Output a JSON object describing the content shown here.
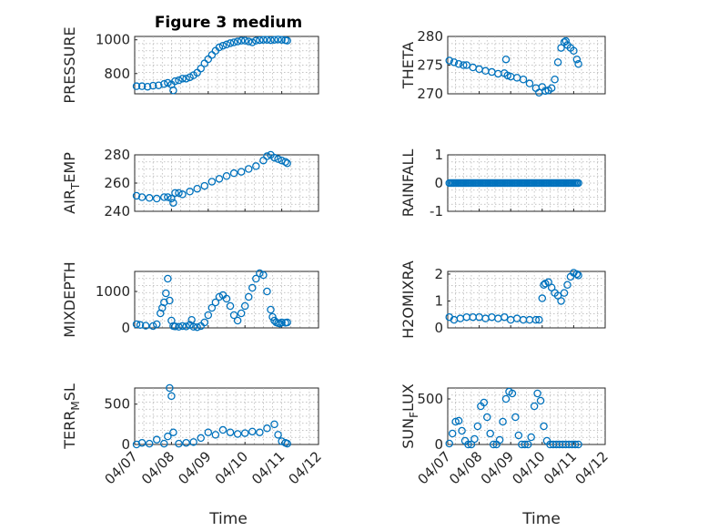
{
  "figure": {
    "title": "Figure 3 medium",
    "xlabel": "Time",
    "marker_color": "#0072BD"
  },
  "chart_data": [
    {
      "type": "scatter",
      "ylabel": "PRESSURE",
      "x_ticks": [
        "04/07",
        "04/08",
        "04/09",
        "04/10",
        "04/11",
        "04/12"
      ],
      "x_tick_labels_visible": false,
      "ylim": [
        680,
        1020
      ],
      "y_ticks": [
        800,
        1000
      ],
      "x_days": [
        0.05,
        0.2,
        0.35,
        0.5,
        0.65,
        0.8,
        0.9,
        1.0,
        1.05,
        1.1,
        1.2,
        1.3,
        1.4,
        1.5,
        1.6,
        1.7,
        1.8,
        1.9,
        2.0,
        2.1,
        2.2,
        2.3,
        2.4,
        2.5,
        2.6,
        2.7,
        2.8,
        2.9,
        3.0,
        3.1,
        3.2,
        3.3,
        3.4,
        3.5,
        3.6,
        3.7,
        3.8,
        3.9,
        4.0,
        4.1,
        4.15
      ],
      "y": [
        725,
        725,
        722,
        728,
        730,
        738,
        745,
        735,
        700,
        755,
        760,
        770,
        770,
        778,
        790,
        805,
        830,
        860,
        885,
        910,
        935,
        955,
        965,
        972,
        980,
        985,
        990,
        995,
        995,
        990,
        985,
        995,
        998,
        1000,
        1000,
        998,
        1000,
        1002,
        1000,
        998,
        995
      ]
    },
    {
      "type": "scatter",
      "ylabel": "THETA",
      "x_ticks": [
        "04/07",
        "04/08",
        "04/09",
        "04/10",
        "04/11",
        "04/12"
      ],
      "x_tick_labels_visible": false,
      "ylim": [
        270,
        280
      ],
      "y_ticks": [
        270,
        275,
        280
      ],
      "x_days": [
        0.05,
        0.2,
        0.35,
        0.5,
        0.6,
        0.8,
        1.0,
        1.2,
        1.4,
        1.6,
        1.8,
        1.85,
        1.9,
        2.0,
        2.2,
        2.4,
        2.6,
        2.8,
        2.9,
        3.0,
        3.1,
        3.2,
        3.3,
        3.4,
        3.5,
        3.6,
        3.7,
        3.75,
        3.8,
        3.9,
        4.0,
        4.1,
        4.15
      ],
      "y": [
        275.8,
        275.5,
        275.2,
        275.0,
        275.0,
        274.6,
        274.3,
        274.0,
        273.8,
        273.5,
        273.6,
        276.0,
        273.2,
        273.0,
        272.8,
        272.5,
        271.8,
        271.0,
        270.2,
        271.2,
        270.5,
        270.6,
        271.0,
        272.5,
        275.5,
        278.0,
        279.0,
        279.2,
        278.5,
        278.0,
        277.5,
        276.0,
        275.2
      ]
    },
    {
      "type": "scatter",
      "ylabel": "AIR_TEMP",
      "x_ticks": [
        "04/07",
        "04/08",
        "04/09",
        "04/10",
        "04/11",
        "04/12"
      ],
      "x_tick_labels_visible": false,
      "ylim": [
        240,
        280
      ],
      "y_ticks": [
        240,
        260,
        280
      ],
      "x_days": [
        0.05,
        0.2,
        0.4,
        0.6,
        0.8,
        0.9,
        1.0,
        1.05,
        1.1,
        1.2,
        1.3,
        1.5,
        1.7,
        1.9,
        2.1,
        2.3,
        2.5,
        2.7,
        2.9,
        3.1,
        3.3,
        3.5,
        3.6,
        3.7,
        3.8,
        3.9,
        4.0,
        4.1,
        4.15
      ],
      "y": [
        251,
        250,
        249.5,
        249,
        250,
        250,
        249,
        246,
        253,
        253,
        252,
        254,
        256,
        258,
        261,
        263,
        265,
        267,
        268,
        270,
        272,
        276,
        279,
        280,
        278,
        277,
        276,
        275,
        274
      ]
    },
    {
      "type": "scatter",
      "ylabel": "RAINFALL",
      "x_ticks": [
        "04/07",
        "04/08",
        "04/09",
        "04/10",
        "04/11",
        "04/12"
      ],
      "x_tick_labels_visible": false,
      "ylim": [
        -1,
        1
      ],
      "y_ticks": [
        -1,
        0,
        1
      ],
      "x_range_days": [
        0.05,
        4.15
      ],
      "constant_value": 0,
      "point_count": 90
    },
    {
      "type": "scatter",
      "ylabel": "MIXDEPTH",
      "x_ticks": [
        "04/07",
        "04/08",
        "04/09",
        "04/10",
        "04/11",
        "04/12"
      ],
      "x_tick_labels_visible": false,
      "ylim": [
        0,
        1550
      ],
      "y_ticks": [
        0,
        1000
      ],
      "x_days": [
        0.05,
        0.15,
        0.3,
        0.5,
        0.6,
        0.7,
        0.75,
        0.8,
        0.85,
        0.9,
        0.95,
        1.0,
        1.05,
        1.1,
        1.2,
        1.3,
        1.4,
        1.5,
        1.55,
        1.6,
        1.7,
        1.8,
        1.9,
        2.0,
        2.1,
        2.2,
        2.3,
        2.4,
        2.5,
        2.6,
        2.7,
        2.8,
        2.9,
        3.0,
        3.1,
        3.2,
        3.3,
        3.4,
        3.5,
        3.6,
        3.7,
        3.75,
        3.8,
        3.85,
        3.9,
        3.95,
        4.0,
        4.1,
        4.15
      ],
      "y": [
        100,
        80,
        60,
        50,
        100,
        400,
        550,
        700,
        950,
        1350,
        750,
        200,
        50,
        40,
        30,
        50,
        40,
        80,
        220,
        30,
        20,
        50,
        150,
        350,
        550,
        700,
        850,
        900,
        800,
        600,
        350,
        200,
        400,
        600,
        850,
        1100,
        1350,
        1500,
        1450,
        1000,
        500,
        300,
        200,
        150,
        130,
        120,
        150,
        140,
        150
      ]
    },
    {
      "type": "scatter",
      "ylabel": "H2OMIXRA",
      "x_ticks": [
        "04/07",
        "04/08",
        "04/09",
        "04/10",
        "04/11",
        "04/12"
      ],
      "x_tick_labels_visible": false,
      "ylim": [
        0,
        2.1
      ],
      "y_ticks": [
        0,
        1,
        2
      ],
      "x_days": [
        0.05,
        0.2,
        0.4,
        0.6,
        0.8,
        1.0,
        1.2,
        1.4,
        1.6,
        1.8,
        2.0,
        2.2,
        2.4,
        2.6,
        2.8,
        2.9,
        3.0,
        3.05,
        3.1,
        3.2,
        3.3,
        3.4,
        3.5,
        3.6,
        3.7,
        3.8,
        3.9,
        4.0,
        4.1,
        4.15
      ],
      "y": [
        0.4,
        0.3,
        0.35,
        0.4,
        0.4,
        0.4,
        0.35,
        0.4,
        0.35,
        0.4,
        0.3,
        0.35,
        0.3,
        0.3,
        0.3,
        0.3,
        1.1,
        1.6,
        1.65,
        1.7,
        1.5,
        1.3,
        1.2,
        1.0,
        1.3,
        1.6,
        1.9,
        2.05,
        2.0,
        1.95
      ]
    },
    {
      "type": "scatter",
      "ylabel": "TERR_MSL",
      "x_ticks": [
        "04/07",
        "04/08",
        "04/09",
        "04/10",
        "04/11",
        "04/12"
      ],
      "x_tick_labels_visible": true,
      "ylim": [
        0,
        700
      ],
      "y_ticks": [
        0,
        500
      ],
      "x_days": [
        0.05,
        0.2,
        0.4,
        0.6,
        0.8,
        0.9,
        0.95,
        1.0,
        1.05,
        1.2,
        1.4,
        1.6,
        1.8,
        2.0,
        2.2,
        2.4,
        2.6,
        2.8,
        3.0,
        3.2,
        3.4,
        3.6,
        3.8,
        3.9,
        4.0,
        4.1,
        4.15
      ],
      "y": [
        0,
        20,
        10,
        60,
        10,
        100,
        700,
        600,
        150,
        10,
        20,
        30,
        80,
        150,
        120,
        180,
        150,
        130,
        140,
        160,
        150,
        200,
        250,
        120,
        40,
        20,
        10
      ]
    },
    {
      "type": "scatter",
      "ylabel": "SUN_FLUX",
      "x_ticks": [
        "04/07",
        "04/08",
        "04/09",
        "04/10",
        "04/11",
        "04/12"
      ],
      "x_tick_labels_visible": true,
      "ylim": [
        0,
        620
      ],
      "y_ticks": [
        0,
        500
      ],
      "x_days": [
        0.05,
        0.15,
        0.25,
        0.35,
        0.45,
        0.55,
        0.65,
        0.75,
        0.85,
        0.95,
        1.05,
        1.15,
        1.25,
        1.35,
        1.45,
        1.55,
        1.65,
        1.75,
        1.85,
        1.95,
        2.05,
        2.15,
        2.25,
        2.35,
        2.45,
        2.55,
        2.65,
        2.75,
        2.85,
        2.95,
        3.05,
        3.15,
        3.25,
        3.35,
        3.45,
        3.55,
        3.65,
        3.75,
        3.85,
        3.95,
        4.05,
        4.15
      ],
      "y": [
        10,
        120,
        250,
        260,
        150,
        40,
        0,
        0,
        60,
        200,
        420,
        460,
        300,
        120,
        0,
        0,
        50,
        250,
        500,
        580,
        560,
        300,
        100,
        0,
        0,
        0,
        80,
        420,
        560,
        480,
        200,
        40,
        0,
        0,
        0,
        0,
        0,
        0,
        0,
        0,
        0,
        0
      ]
    }
  ]
}
